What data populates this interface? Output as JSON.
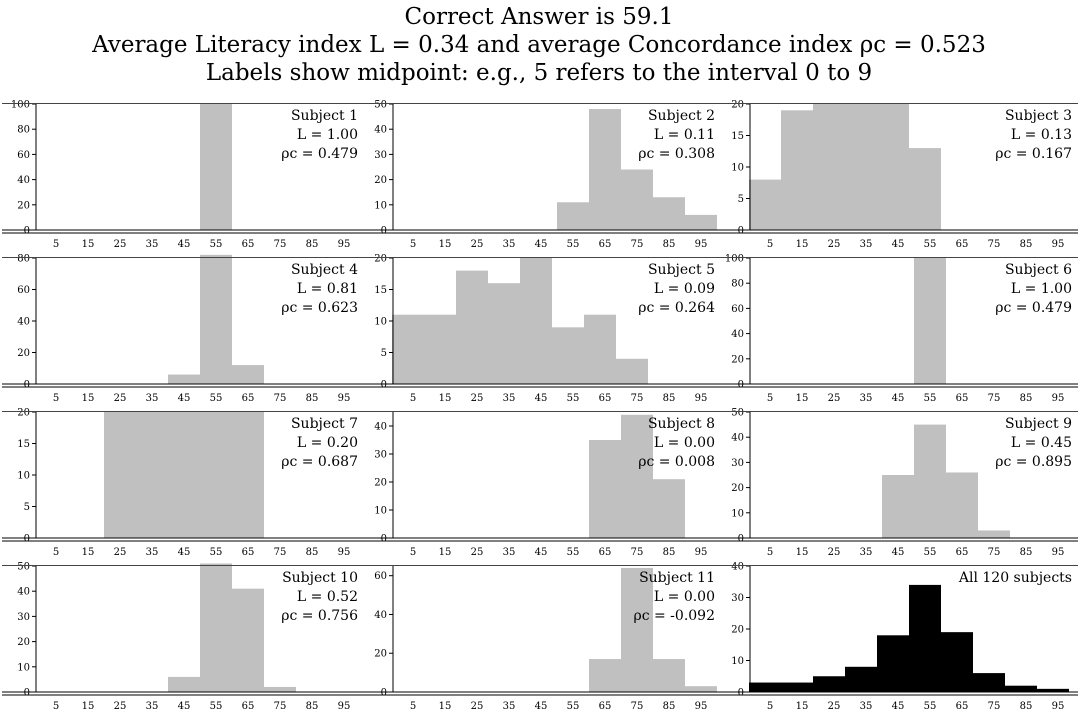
{
  "header": {
    "line1": "Correct Answer is 59.1",
    "line2": "Average Literacy index L = 0.34 and average Concordance index ρc = 0.523",
    "line3": "Labels show midpoint: e.g., 5 refers to the interval 0 to 9"
  },
  "colors": {
    "subject_bar": "#c0c0c0",
    "all_bar": "#000000",
    "axis": "#000000"
  },
  "chart_data": [
    {
      "type": "bar",
      "title": "Subject 1",
      "stat_L": "L = 1.00",
      "stat_rho": "ρc = 0.479",
      "categories": [
        "5",
        "15",
        "25",
        "35",
        "45",
        "55",
        "65",
        "75",
        "85",
        "95"
      ],
      "values": [
        0,
        0,
        0,
        0,
        0,
        100,
        0,
        0,
        0,
        0
      ],
      "ylim": [
        0,
        100
      ],
      "yticks": [
        0,
        20,
        40,
        60,
        80,
        100
      ],
      "bar_start_x": 4
    },
    {
      "type": "bar",
      "title": "Subject 2",
      "stat_L": "L = 0.11",
      "stat_rho": "ρc = 0.308",
      "categories": [
        "5",
        "15",
        "25",
        "35",
        "45",
        "55",
        "65",
        "75",
        "85",
        "95"
      ],
      "values": [
        0,
        0,
        0,
        0,
        0,
        11,
        48,
        24,
        13,
        6
      ],
      "ylim": [
        0,
        50
      ],
      "yticks": [
        0,
        10,
        20,
        30,
        40,
        50
      ],
      "bar_start_x": 4
    },
    {
      "type": "bar",
      "title": "Subject 3",
      "stat_L": "L = 0.13",
      "stat_rho": "ρc = 0.167",
      "categories": [
        "5",
        "15",
        "25",
        "35",
        "45",
        "55",
        "65",
        "75",
        "85",
        "95"
      ],
      "values": [
        8,
        19,
        20,
        20,
        20,
        13,
        0,
        0,
        0,
        0
      ],
      "ylim": [
        0,
        20
      ],
      "yticks": [
        0,
        5,
        10,
        15,
        20
      ],
      "bar_start_x": -1
    },
    {
      "type": "bar",
      "title": "Subject 4",
      "stat_L": "L = 0.81",
      "stat_rho": "ρc = 0.623",
      "categories": [
        "5",
        "15",
        "25",
        "35",
        "45",
        "55",
        "65",
        "75",
        "85",
        "95"
      ],
      "values": [
        0,
        0,
        0,
        0,
        6,
        82,
        12,
        0,
        0,
        0
      ],
      "ylim": [
        0,
        80
      ],
      "yticks": [
        0,
        20,
        40,
        60,
        80
      ],
      "bar_start_x": 4
    },
    {
      "type": "bar",
      "title": "Subject 5",
      "stat_L": "L = 0.09",
      "stat_rho": "ρc = 0.264",
      "categories": [
        "5",
        "15",
        "25",
        "35",
        "45",
        "55",
        "65",
        "75",
        "85",
        "95"
      ],
      "values": [
        11,
        11,
        18,
        16,
        20,
        9,
        11,
        4,
        0,
        0
      ],
      "ylim": [
        0,
        20
      ],
      "yticks": [
        0,
        5,
        10,
        15,
        20
      ],
      "bar_start_x": -1
    },
    {
      "type": "bar",
      "title": "Subject 6",
      "stat_L": "L = 1.00",
      "stat_rho": "ρc = 0.479",
      "categories": [
        "5",
        "15",
        "25",
        "35",
        "45",
        "55",
        "65",
        "75",
        "85",
        "95"
      ],
      "values": [
        0,
        0,
        0,
        0,
        0,
        100,
        0,
        0,
        0,
        0
      ],
      "ylim": [
        0,
        100
      ],
      "yticks": [
        0,
        20,
        40,
        60,
        80,
        100
      ],
      "bar_start_x": 4
    },
    {
      "type": "bar",
      "title": "Subject 7",
      "stat_L": "L = 0.20",
      "stat_rho": "ρc = 0.687",
      "categories": [
        "5",
        "15",
        "25",
        "35",
        "45",
        "55",
        "65",
        "75",
        "85",
        "95"
      ],
      "values": [
        0,
        0,
        20,
        20,
        20,
        20,
        20,
        0,
        0,
        0
      ],
      "ylim": [
        0,
        20
      ],
      "yticks": [
        0,
        5,
        10,
        15,
        20
      ],
      "bar_start_x": 4
    },
    {
      "type": "bar",
      "title": "Subject 8",
      "stat_L": "L = 0.00",
      "stat_rho": "ρc = 0.008",
      "categories": [
        "5",
        "15",
        "25",
        "35",
        "45",
        "55",
        "65",
        "75",
        "85",
        "95"
      ],
      "values": [
        0,
        0,
        0,
        0,
        0,
        0,
        35,
        44,
        21,
        0
      ],
      "ylim": [
        0,
        45
      ],
      "yticks": [
        0,
        10,
        20,
        30,
        40
      ],
      "bar_start_x": 4
    },
    {
      "type": "bar",
      "title": "Subject 9",
      "stat_L": "L = 0.45",
      "stat_rho": "ρc = 0.895",
      "categories": [
        "5",
        "15",
        "25",
        "35",
        "45",
        "55",
        "65",
        "75",
        "85",
        "95"
      ],
      "values": [
        0,
        0,
        0,
        0,
        25,
        45,
        26,
        3,
        0,
        0
      ],
      "ylim": [
        0,
        50
      ],
      "yticks": [
        0,
        10,
        20,
        30,
        40,
        50
      ],
      "bar_start_x": 4
    },
    {
      "type": "bar",
      "title": "Subject 10",
      "stat_L": "L = 0.52",
      "stat_rho": "ρc = 0.756",
      "categories": [
        "5",
        "15",
        "25",
        "35",
        "45",
        "55",
        "65",
        "75",
        "85",
        "95"
      ],
      "values": [
        0,
        0,
        0,
        0,
        6,
        51,
        41,
        2,
        0,
        0
      ],
      "ylim": [
        0,
        50
      ],
      "yticks": [
        0,
        10,
        20,
        30,
        40,
        50
      ],
      "bar_start_x": 4
    },
    {
      "type": "bar",
      "title": "Subject 11",
      "stat_L": "L = 0.00",
      "stat_rho": "ρc = -0.092",
      "categories": [
        "5",
        "15",
        "25",
        "35",
        "45",
        "55",
        "65",
        "75",
        "85",
        "95"
      ],
      "values": [
        0,
        0,
        0,
        0,
        0,
        0,
        17,
        64,
        17,
        3
      ],
      "ylim": [
        0,
        65
      ],
      "yticks": [
        0,
        20,
        40,
        60
      ],
      "bar_start_x": 4
    },
    {
      "type": "bar",
      "title": "All 120 subjects",
      "stat_L": "",
      "stat_rho": "",
      "categories": [
        "5",
        "15",
        "25",
        "35",
        "45",
        "55",
        "65",
        "75",
        "85",
        "95"
      ],
      "values": [
        3,
        3,
        5,
        8,
        18,
        34,
        19,
        6,
        2,
        1
      ],
      "ylim": [
        0,
        40
      ],
      "yticks": [
        0,
        10,
        20,
        30,
        40
      ],
      "bar_start_x": -1
    }
  ]
}
